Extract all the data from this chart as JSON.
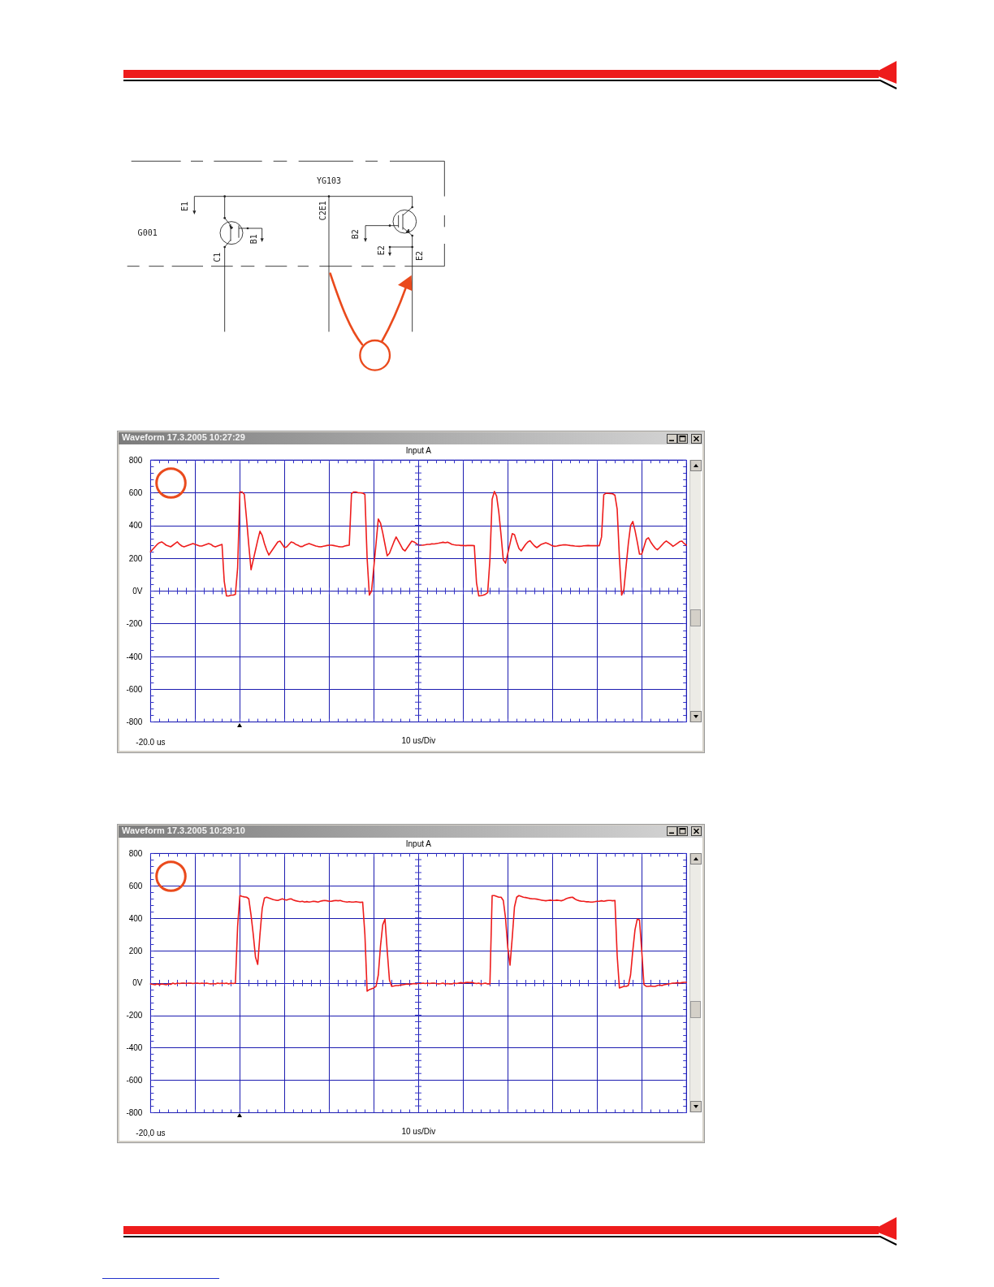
{
  "chart_data": [
    {
      "type": "other",
      "annotations": [
        "YG103",
        "G001",
        "E1",
        "C2E1",
        "B1",
        "C1",
        "B2",
        "E2",
        "E2"
      ]
    },
    {
      "type": "line",
      "title": "Waveform 17.3.2005 10:27:29",
      "subtitle": "Input A",
      "xlabel": "10 us/Div",
      "annotations": [
        "-20.0 us"
      ],
      "color": "#ee1c1c",
      "marker": "none",
      "line_style": "solid",
      "grid": true,
      "categories": [
        null,
        null,
        null,
        null,
        null,
        null,
        null,
        null,
        null,
        null,
        null,
        null,
        null,
        null,
        null,
        null,
        null,
        null,
        null,
        null,
        null,
        null,
        null,
        null,
        null,
        null,
        null,
        null,
        null,
        null,
        null,
        null,
        null,
        null,
        null,
        null,
        null,
        null,
        null,
        null,
        null,
        null,
        null,
        null,
        null,
        null,
        null,
        null,
        null,
        null,
        null,
        null,
        null,
        null,
        null,
        null,
        null,
        null,
        null,
        null,
        null,
        null,
        null,
        null,
        null,
        null,
        null,
        null,
        null,
        null,
        null,
        null,
        null,
        null,
        null,
        null,
        null,
        null,
        null,
        null,
        null,
        null,
        null,
        null,
        null,
        null,
        null,
        null,
        null,
        null,
        null,
        null,
        null,
        null,
        null,
        null,
        null,
        null,
        null,
        null,
        null,
        null,
        null,
        null,
        null,
        null,
        null,
        null,
        null,
        null,
        null,
        null,
        null,
        null,
        null,
        null,
        null,
        null,
        null,
        null,
        null,
        null,
        null,
        null,
        null,
        null,
        null,
        null,
        null,
        null,
        null,
        null,
        null,
        null,
        null,
        null,
        null,
        null,
        null,
        null,
        null,
        null,
        null,
        null,
        null,
        null,
        null,
        null,
        null,
        null,
        null,
        null,
        null,
        null,
        null,
        null,
        null,
        null,
        null,
        null,
        null,
        null,
        null,
        null,
        null,
        null,
        null,
        null,
        null,
        null,
        null,
        null,
        null,
        null,
        null,
        null,
        null,
        null,
        null,
        null,
        null,
        null,
        null,
        null,
        null,
        null,
        null,
        null,
        null,
        null,
        null,
        null,
        null,
        null,
        null,
        null,
        null,
        null,
        null,
        null,
        null,
        null,
        null,
        null,
        null,
        null,
        null,
        null,
        null,
        null,
        null,
        null,
        null,
        null,
        null,
        null,
        null,
        null,
        null,
        null,
        null,
        null,
        null,
        null,
        null,
        null,
        null,
        null,
        null,
        null,
        null,
        null,
        null,
        null,
        null,
        null,
        null,
        null,
        null,
        null,
        null
      ],
      "values": [
        240,
        255,
        270,
        285,
        295,
        300,
        290,
        280,
        275,
        270,
        280,
        290,
        300,
        285,
        275,
        270,
        275,
        280,
        285,
        290,
        285,
        280,
        275,
        275,
        280,
        285,
        290,
        285,
        275,
        270,
        275,
        280,
        285,
        60,
        -30,
        -30,
        -25,
        -25,
        -20,
        140,
        605,
        605,
        590,
        440,
        280,
        130,
        190,
        250,
        310,
        365,
        340,
        290,
        250,
        220,
        240,
        260,
        280,
        300,
        305,
        285,
        265,
        270,
        285,
        300,
        295,
        285,
        280,
        272,
        272,
        280,
        285,
        290,
        285,
        280,
        275,
        272,
        270,
        272,
        275,
        278,
        280,
        280,
        278,
        275,
        272,
        270,
        270,
        275,
        278,
        280,
        595,
        605,
        605,
        600,
        600,
        598,
        590,
        200,
        -25,
        0,
        145,
        290,
        440,
        415,
        355,
        285,
        215,
        230,
        265,
        300,
        330,
        305,
        280,
        255,
        245,
        265,
        285,
        305,
        300,
        290,
        280,
        280,
        280,
        282,
        285,
        285,
        288,
        287,
        290,
        292,
        295,
        298,
        295,
        298,
        292,
        285,
        282,
        280,
        280,
        278,
        278,
        277,
        278,
        278,
        278,
        277,
        50,
        -30,
        -28,
        -25,
        -20,
        -10,
        190,
        560,
        608,
        580,
        480,
        340,
        190,
        170,
        230,
        290,
        350,
        345,
        300,
        260,
        245,
        265,
        285,
        300,
        307,
        290,
        275,
        265,
        275,
        285,
        290,
        295,
        290,
        283,
        276,
        273,
        275,
        278,
        280,
        282,
        282,
        280,
        278,
        277,
        275,
        274,
        273,
        274,
        276,
        277,
        278,
        277,
        277,
        277,
        277,
        277,
        330,
        588,
        597,
        596,
        595,
        594,
        585,
        500,
        205,
        -25,
        8,
        150,
        290,
        400,
        425,
        370,
        300,
        225,
        225,
        270,
        315,
        325,
        300,
        280,
        262,
        252,
        265,
        280,
        295,
        305,
        295,
        285,
        273,
        282,
        292,
        302,
        305,
        290,
        280
      ],
      "ylim": [
        -800,
        800
      ],
      "yticks": [
        -800,
        -600,
        -400,
        -200,
        {
          "value": 0,
          "label": "0V"
        },
        200,
        400,
        600,
        800
      ]
    },
    {
      "type": "line",
      "title": "Waveform 17.3.2005 10:29:10",
      "subtitle": "Input A",
      "xlabel": "10 us/Div",
      "annotations": [
        "-20,0 us"
      ],
      "color": "#ee1c1c",
      "marker": "none",
      "line_style": "solid",
      "grid": true,
      "categories": [
        null,
        null,
        null,
        null,
        null,
        null,
        null,
        null,
        null,
        null,
        null,
        null,
        null,
        null,
        null,
        null,
        null,
        null,
        null,
        null,
        null,
        null,
        null,
        null,
        null,
        null,
        null,
        null,
        null,
        null,
        null,
        null,
        null,
        null,
        null,
        null,
        null,
        null,
        null,
        null,
        null,
        null,
        null,
        null,
        null,
        null,
        null,
        null,
        null,
        null,
        null,
        null,
        null,
        null,
        null,
        null,
        null,
        null,
        null,
        null,
        null,
        null,
        null,
        null,
        null,
        null,
        null,
        null,
        null,
        null,
        null,
        null,
        null,
        null,
        null,
        null,
        null,
        null,
        null,
        null,
        null,
        null,
        null,
        null,
        null,
        null,
        null,
        null,
        null,
        null,
        null,
        null,
        null,
        null,
        null,
        null,
        null,
        null,
        null,
        null,
        null,
        null,
        null,
        null,
        null,
        null,
        null,
        null,
        null,
        null,
        null,
        null,
        null,
        null,
        null,
        null,
        null,
        null,
        null,
        null,
        null,
        null,
        null,
        null,
        null,
        null,
        null,
        null,
        null,
        null,
        null,
        null,
        null,
        null,
        null,
        null,
        null,
        null,
        null,
        null,
        null,
        null,
        null,
        null,
        null,
        null,
        null,
        null,
        null,
        null,
        null,
        null,
        null,
        null,
        null,
        null,
        null,
        null,
        null,
        null,
        null,
        null,
        null,
        null,
        null,
        null,
        null,
        null,
        null,
        null,
        null,
        null,
        null,
        null,
        null,
        null,
        null,
        null,
        null,
        null,
        null,
        null,
        null,
        null,
        null,
        null,
        null,
        null,
        null,
        null,
        null,
        null,
        null,
        null,
        null,
        null,
        null,
        null,
        null,
        null,
        null,
        null,
        null,
        null,
        null,
        null,
        null,
        null,
        null,
        null,
        null,
        null,
        null,
        null,
        null,
        null,
        null,
        null,
        null,
        null,
        null,
        null,
        null,
        null,
        null,
        null,
        null,
        null,
        null,
        null,
        null,
        null,
        null,
        null,
        null,
        null,
        null,
        null,
        null,
        null,
        null
      ],
      "values": [
        -5,
        -8,
        -10,
        -5,
        -10,
        -5,
        -8,
        -10,
        -5,
        -8,
        0,
        -5,
        0,
        -3,
        0,
        0,
        -3,
        0,
        0,
        -3,
        0,
        0,
        -3,
        0,
        -3,
        0,
        -3,
        -5,
        -3,
        -5,
        0,
        -3,
        0,
        -3,
        0,
        -5,
        0,
        -3,
        0,
        350,
        540,
        535,
        532,
        530,
        520,
        420,
        300,
        160,
        115,
        300,
        460,
        525,
        530,
        525,
        520,
        515,
        512,
        510,
        515,
        520,
        515,
        512,
        518,
        520,
        512,
        508,
        505,
        502,
        505,
        500,
        503,
        500,
        502,
        505,
        503,
        500,
        505,
        508,
        510,
        508,
        505,
        505,
        508,
        510,
        508,
        510,
        505,
        502,
        500,
        502,
        500,
        500,
        502,
        500,
        498,
        500,
        300,
        -50,
        -40,
        -35,
        -30,
        -20,
        50,
        230,
        360,
        395,
        200,
        20,
        -20,
        -18,
        -15,
        -15,
        -12,
        -10,
        -8,
        -5,
        -8,
        -5,
        -3,
        -5,
        0,
        -3,
        0,
        -3,
        0,
        -3,
        0,
        0,
        -3,
        -5,
        -3,
        0,
        -5,
        -3,
        -5,
        -5,
        0,
        -3,
        0,
        3,
        0,
        3,
        5,
        3,
        5,
        0,
        -3,
        0,
        -5,
        -3,
        0,
        -5,
        -5,
        540,
        540,
        535,
        530,
        530,
        510,
        400,
        220,
        110,
        280,
        470,
        530,
        540,
        535,
        530,
        528,
        525,
        522,
        520,
        520,
        518,
        515,
        512,
        510,
        508,
        510,
        512,
        510,
        510,
        512,
        510,
        508,
        512,
        520,
        525,
        528,
        530,
        520,
        512,
        508,
        505,
        505,
        502,
        502,
        500,
        500,
        502,
        505,
        505,
        508,
        505,
        508,
        510,
        510,
        508,
        510,
        170,
        -30,
        -25,
        -20,
        -20,
        -15,
        50,
        200,
        330,
        395,
        390,
        200,
        -10,
        -20,
        -20,
        -18,
        -20,
        -20,
        -15,
        -12,
        -15,
        -10,
        -8,
        -5,
        -3,
        0,
        0,
        3,
        0,
        3,
        5,
        5
      ],
      "ylim": [
        -800,
        800
      ],
      "yticks": [
        -800,
        -600,
        -400,
        -200,
        {
          "value": 0,
          "label": "0V"
        },
        200,
        400,
        600,
        800
      ]
    }
  ]
}
